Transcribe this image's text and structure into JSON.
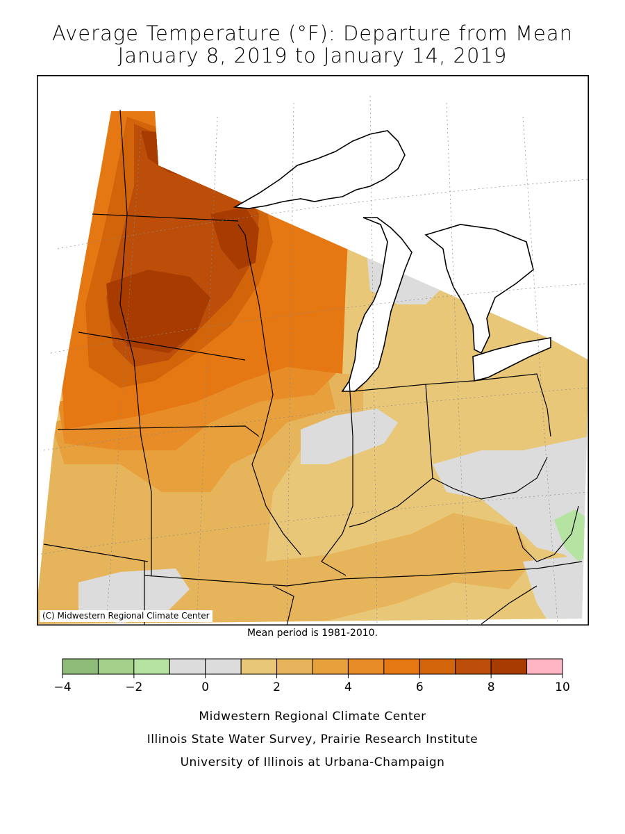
{
  "title": {
    "line1": "Average Temperature (°F): Departure from Mean",
    "line2": "January 8, 2019 to January 14, 2019"
  },
  "map": {
    "credit": "(C) Midwestern Regional Climate Center",
    "mean_period": "Mean period is 1981-2010."
  },
  "legend": {
    "colors": [
      "#8FBC78",
      "#A3CF8A",
      "#B4E3A2",
      "#DCDCDC",
      "#DCDCDC",
      "#E8C878",
      "#E6B45A",
      "#E8A03C",
      "#E88C28",
      "#E67814",
      "#D2640A",
      "#BC4E0A",
      "#A83C00",
      "#FFB4C3"
    ],
    "tick_values": [
      -4,
      -2,
      0,
      2,
      4,
      6,
      8,
      10
    ],
    "tick_labels": [
      "−4",
      "−2",
      "0",
      "2",
      "4",
      "6",
      "8",
      "10"
    ]
  },
  "footer": {
    "line1": "Midwestern Regional Climate Center",
    "line2": "Illinois State Water Survey, Prairie Research Institute",
    "line3": "University of Illinois at Urbana-Champaign"
  }
}
